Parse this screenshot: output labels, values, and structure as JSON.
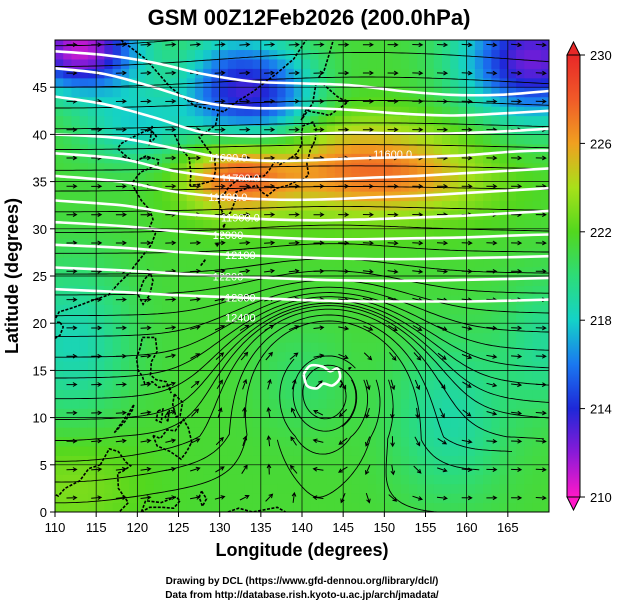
{
  "chart_data": {
    "type": "heatmap",
    "title": "GSM 00Z12Feb2026 (200.0hPa)",
    "xlabel": "Longitude (degrees)",
    "ylabel": "Latitude  (degrees)",
    "xlim": [
      110,
      170
    ],
    "ylim": [
      0,
      50
    ],
    "xticks": [
      110,
      115,
      120,
      125,
      130,
      135,
      140,
      145,
      150,
      155,
      160,
      165
    ],
    "yticks": [
      0,
      5,
      10,
      15,
      20,
      25,
      30,
      35,
      40,
      45
    ],
    "colorbar": {
      "min": 210,
      "max": 230,
      "ticks": [
        210,
        214,
        218,
        222,
        226,
        230
      ]
    },
    "contours": [
      {
        "value": 11600,
        "label": "11600.0",
        "points": [
          [
            110,
            40
          ],
          [
            118,
            39.6
          ],
          [
            124,
            38.6
          ],
          [
            130,
            37.6
          ],
          [
            136,
            37.2
          ],
          [
            142,
            37.3
          ],
          [
            148,
            37.5
          ],
          [
            154,
            37.6
          ],
          [
            160,
            37.8
          ],
          [
            166,
            38.2
          ],
          [
            170,
            38.3
          ]
        ]
      },
      {
        "value": 11700,
        "label": "11700.0",
        "points": [
          [
            110,
            38
          ],
          [
            118,
            37.4
          ],
          [
            124,
            36.2
          ],
          [
            130,
            35.5
          ],
          [
            136,
            35.2
          ],
          [
            142,
            35.2
          ],
          [
            148,
            35.4
          ],
          [
            154,
            35.6
          ],
          [
            160,
            35.9
          ],
          [
            166,
            36.2
          ],
          [
            170,
            36.4
          ]
        ]
      },
      {
        "value": 11800,
        "label": "11800.0",
        "points": [
          [
            110,
            35.6
          ],
          [
            118,
            35
          ],
          [
            124,
            34
          ],
          [
            130,
            33.4
          ],
          [
            136,
            33.1
          ],
          [
            142,
            33.1
          ],
          [
            148,
            33.3
          ],
          [
            154,
            33.5
          ],
          [
            160,
            33.8
          ],
          [
            166,
            34.1
          ],
          [
            170,
            34.3
          ]
        ]
      },
      {
        "value": 11900,
        "label": "11900.0",
        "points": [
          [
            110,
            33
          ],
          [
            118,
            32.5
          ],
          [
            124,
            31.7
          ],
          [
            130,
            31.3
          ],
          [
            136,
            31
          ],
          [
            142,
            30.9
          ],
          [
            148,
            31
          ],
          [
            154,
            31.2
          ],
          [
            160,
            31.4
          ],
          [
            166,
            31.7
          ],
          [
            170,
            31.9
          ]
        ]
      },
      {
        "value": 12000,
        "label": "12000",
        "points": [
          [
            110,
            30.7
          ],
          [
            118,
            30.3
          ],
          [
            124,
            29.8
          ],
          [
            130,
            29.4
          ],
          [
            136,
            29.1
          ],
          [
            142,
            28.9
          ],
          [
            148,
            28.9
          ],
          [
            154,
            29
          ],
          [
            160,
            29.1
          ],
          [
            166,
            29.3
          ],
          [
            170,
            29.4
          ]
        ]
      },
      {
        "value": 12100,
        "label": "12100",
        "points": [
          [
            110,
            28.3
          ],
          [
            118,
            28
          ],
          [
            124,
            27.6
          ],
          [
            130,
            27.3
          ],
          [
            136,
            27.1
          ],
          [
            142,
            26.9
          ],
          [
            148,
            26.8
          ],
          [
            154,
            26.8
          ],
          [
            160,
            26.9
          ],
          [
            166,
            27
          ],
          [
            170,
            27.1
          ]
        ]
      },
      {
        "value": 12200,
        "label": "12200",
        "points": [
          [
            110,
            25.9
          ],
          [
            118,
            25.6
          ],
          [
            124,
            25.3
          ],
          [
            130,
            25
          ],
          [
            136,
            24.8
          ],
          [
            142,
            24.6
          ],
          [
            148,
            24.5
          ],
          [
            154,
            24.5
          ],
          [
            160,
            24.6
          ],
          [
            166,
            24.7
          ],
          [
            170,
            24.8
          ]
        ]
      },
      {
        "value": 12300,
        "label": "12300",
        "points": [
          [
            110,
            23.6
          ],
          [
            118,
            23.3
          ],
          [
            124,
            23
          ],
          [
            130,
            22.8
          ],
          [
            136,
            22.6
          ],
          [
            142,
            22.4
          ],
          [
            148,
            22.3
          ],
          [
            154,
            22.3
          ],
          [
            160,
            22.3
          ],
          [
            166,
            22.4
          ],
          [
            170,
            22.5
          ]
        ]
      },
      {
        "value": 11500,
        "label": "",
        "points": [
          [
            110,
            44
          ],
          [
            116,
            43.2
          ],
          [
            122,
            41.8
          ],
          [
            128,
            40.2
          ],
          [
            134,
            39.8
          ],
          [
            140,
            40
          ],
          [
            146,
            40.2
          ],
          [
            152,
            40.1
          ],
          [
            158,
            40.1
          ],
          [
            164,
            40.3
          ],
          [
            170,
            40.6
          ]
        ]
      },
      {
        "value": 11400,
        "label": "",
        "points": [
          [
            110,
            47
          ],
          [
            116,
            46.4
          ],
          [
            122,
            45
          ],
          [
            128,
            43.4
          ],
          [
            134,
            42.8
          ],
          [
            140,
            42.8
          ],
          [
            146,
            42.6
          ],
          [
            152,
            42.2
          ],
          [
            158,
            42
          ],
          [
            164,
            42.2
          ],
          [
            170,
            42.5
          ]
        ]
      },
      {
        "value": 11300,
        "label": "",
        "points": [
          [
            110,
            48.8
          ],
          [
            116,
            48.4
          ],
          [
            122,
            47.6
          ],
          [
            128,
            46.4
          ],
          [
            134,
            45.6
          ],
          [
            140,
            45.4
          ],
          [
            146,
            45.2
          ],
          [
            152,
            44.6
          ],
          [
            158,
            44.2
          ],
          [
            164,
            44.2
          ],
          [
            170,
            44.6
          ]
        ]
      }
    ],
    "annotations": [
      "11600.0",
      "11700.0",
      "11800.0",
      "11900.0",
      "12000",
      "12100",
      "12200",
      "12300",
      "12400"
    ]
  },
  "credits": {
    "line1": "Drawing by DCL (https://www.gfd-dennou.org/library/dcl/)",
    "line2": "Data from http://database.rish.kyoto-u.ac.jp/arch/jmadata/"
  }
}
